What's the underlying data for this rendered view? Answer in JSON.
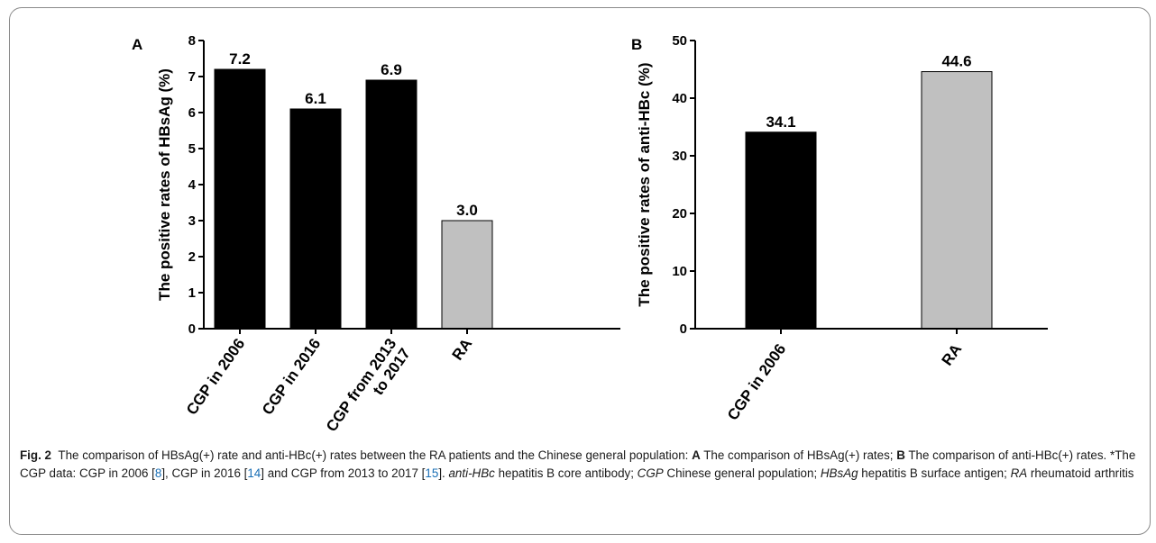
{
  "chart_data": [
    {
      "type": "bar",
      "panel_label": "A",
      "ylabel": "The positive rates of HBsAg (%)",
      "categories": [
        [
          "CGP in 2006"
        ],
        [
          "CGP in 2016"
        ],
        [
          "CGP from 2013",
          "to 2017"
        ],
        [
          "RA"
        ]
      ],
      "values": [
        7.2,
        6.1,
        6.9,
        3.0
      ],
      "value_labels": [
        "7.2",
        "6.1",
        "6.9",
        "3.0"
      ],
      "bar_colors": [
        "#000000",
        "#000000",
        "#000000",
        "#c0c0c0"
      ],
      "ylim": [
        0,
        8
      ],
      "yticks": [
        0,
        1,
        2,
        3,
        4,
        5,
        6,
        7,
        8
      ],
      "grid": false
    },
    {
      "type": "bar",
      "panel_label": "B",
      "ylabel": "The positive rates of anti-HBc (%)",
      "categories": [
        [
          "CGP in 2006"
        ],
        [
          "RA"
        ]
      ],
      "values": [
        34.1,
        44.6
      ],
      "value_labels": [
        "34.1",
        "44.6"
      ],
      "bar_colors": [
        "#000000",
        "#c0c0c0"
      ],
      "ylim": [
        0,
        50
      ],
      "yticks": [
        0,
        10,
        20,
        30,
        40,
        50
      ],
      "grid": false
    }
  ],
  "caption": {
    "fig_label": "Fig. 2",
    "text_1": "The comparison of HBsAg(+) rate and anti-HBc(+) rates between the RA patients and the Chinese general population: ",
    "panel_a": "A",
    "text_2": " The comparison of HBsAg(+) rates; ",
    "panel_b": "B",
    "text_3": " The comparison of anti-HBc(+) rates. *The CGP data: CGP in 2006 [",
    "ref_1": "8",
    "text_4": "], CGP in 2016 [",
    "ref_2": "14",
    "text_5": "] and CGP from 2013 to 2017 [",
    "ref_3": "15",
    "text_6": "]. ",
    "abbr_1": "anti-HBc",
    "def_1": " hepatitis B core antibody; ",
    "abbr_2": "CGP",
    "def_2": " Chinese general population; ",
    "abbr_3": "HBsAg",
    "def_3": " hepatitis B surface antigen; ",
    "abbr_4": "RA",
    "def_4": " rheumatoid arthritis"
  }
}
